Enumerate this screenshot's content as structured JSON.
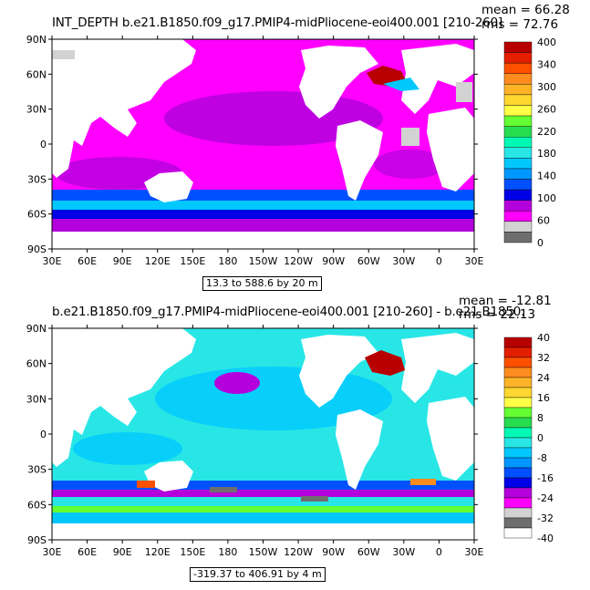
{
  "panels": [
    {
      "title": "INT_DEPTH  b.e21.B1850.f09_g17.PMIP4-midPliocene-eoi400.001  [210-260]",
      "mean": "mean = 66.28",
      "rms": "rms = 72.76",
      "range": "13.3 to 588.6 by 20 m",
      "colorbar_labels": [
        "400",
        "340",
        "300",
        "260",
        "220",
        "180",
        "140",
        "100",
        "60",
        "0"
      ],
      "colorbar_colors": [
        "#b80000",
        "#e41e00",
        "#ff5000",
        "#ff8c1e",
        "#ffb428",
        "#ffd730",
        "#ffff46",
        "#64ff32",
        "#28dc50",
        "#00fab4",
        "#28e6e6",
        "#00c8ff",
        "#0096ff",
        "#0050ff",
        "#0000e6",
        "#b400dc",
        "#ff00ff",
        "#d2d2d2",
        "#6e6e6e"
      ]
    },
    {
      "title": "b.e21.B1850.f09_g17.PMIP4-midPliocene-eoi400.001  [210-260]  - b.e21.B1850.",
      "mean": "mean = -12.81",
      "rms": "rms = 22.13",
      "range": "-319.37 to 406.91 by 4 m",
      "colorbar_labels": [
        "40",
        "32",
        "24",
        "16",
        "8",
        "0",
        "-8",
        "-16",
        "-24",
        "-32",
        "-40"
      ],
      "colorbar_colors": [
        "#b80000",
        "#e41e00",
        "#ff5000",
        "#ff8c1e",
        "#ffb428",
        "#ffd730",
        "#ffff46",
        "#64ff32",
        "#28dc50",
        "#00fab4",
        "#28e6e6",
        "#00c8ff",
        "#0096ff",
        "#0050ff",
        "#0000e6",
        "#b400dc",
        "#ff00ff",
        "#d2d2d2",
        "#6e6e6e",
        "#ffffff"
      ]
    }
  ],
  "lat_labels": [
    "90N",
    "60N",
    "30N",
    "0",
    "30S",
    "60S",
    "90S"
  ],
  "lon_labels": [
    "30E",
    "60E",
    "90E",
    "120E",
    "150E",
    "180",
    "150W",
    "120W",
    "90W",
    "60W",
    "30W",
    "0",
    "30E"
  ],
  "colors": {
    "panel1_ocean": "#ff00ff",
    "panel1_southern": "#0050ff",
    "panel2_ocean": "#28e6e6",
    "panel2_deep": "#00c8ff",
    "land": "#ffffff",
    "missing": "#d2d2d2"
  }
}
